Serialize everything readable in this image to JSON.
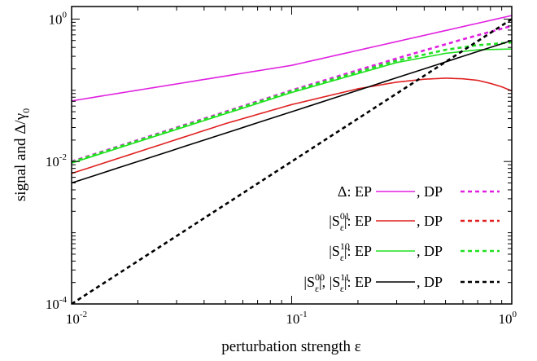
{
  "chart_data": {
    "type": "line",
    "xscale": "log",
    "yscale": "log",
    "xlim": [
      0.01,
      1
    ],
    "ylim": [
      0.0001,
      1.5
    ],
    "xlabel": "perturbation strength ε",
    "ylabel": "signal and Δ/γ",
    "ylabel_sub": "0",
    "x_ticks": [
      {
        "value": 0.01,
        "base": "10",
        "exp": "-2"
      },
      {
        "value": 0.1,
        "base": "10",
        "exp": "-1"
      },
      {
        "value": 1,
        "base": "10",
        "exp": "0"
      }
    ],
    "y_ticks": [
      {
        "value": 0.0001,
        "base": "10",
        "exp": "-4"
      },
      {
        "value": 0.01,
        "base": "10",
        "exp": "-2"
      },
      {
        "value": 1,
        "base": "10",
        "exp": "0"
      }
    ],
    "series": [
      {
        "name": "Δ: EP",
        "color": "#e020e0",
        "dashed": false,
        "points": [
          [
            0.01,
            0.071
          ],
          [
            0.1,
            0.224
          ],
          [
            1.0,
            1.12
          ]
        ]
      },
      {
        "name": "Δ: DP",
        "color": "#e020e0",
        "dashed": true,
        "points": [
          [
            0.01,
            0.01
          ],
          [
            0.1,
            0.1
          ],
          [
            0.3,
            0.28
          ],
          [
            0.6,
            0.52
          ],
          [
            1.0,
            0.8
          ]
        ]
      },
      {
        "name": "|S^01|: EP",
        "color": "#e02020",
        "dashed": false,
        "points": [
          [
            0.01,
            0.0068
          ],
          [
            0.05,
            0.034
          ],
          [
            0.1,
            0.063
          ],
          [
            0.2,
            0.105
          ],
          [
            0.3,
            0.13
          ],
          [
            0.4,
            0.143
          ],
          [
            0.5,
            0.148
          ],
          [
            0.6,
            0.145
          ],
          [
            0.7,
            0.138
          ],
          [
            0.8,
            0.125
          ],
          [
            0.9,
            0.112
          ],
          [
            1.0,
            0.098
          ]
        ]
      },
      {
        "name": "|S^01|: DP",
        "color": "#e02020",
        "dashed": true,
        "points": []
      },
      {
        "name": "|S^10|: EP",
        "color": "#20e020",
        "dashed": false,
        "points": [
          [
            0.01,
            0.0095
          ],
          [
            0.1,
            0.093
          ],
          [
            0.3,
            0.245
          ],
          [
            0.5,
            0.33
          ],
          [
            0.7,
            0.37
          ],
          [
            1.0,
            0.38
          ]
        ]
      },
      {
        "name": "|S^10|: DP",
        "color": "#20e020",
        "dashed": true,
        "points": [
          [
            0.01,
            0.0098
          ],
          [
            0.1,
            0.097
          ],
          [
            0.3,
            0.26
          ],
          [
            0.5,
            0.37
          ],
          [
            0.7,
            0.43
          ],
          [
            1.0,
            0.47
          ]
        ]
      },
      {
        "name": "|S^00|, |S^11|: EP",
        "color": "#000000",
        "dashed": false,
        "points": [
          [
            0.01,
            0.005
          ],
          [
            0.1,
            0.05
          ],
          [
            1.0,
            0.5
          ]
        ]
      },
      {
        "name": "|S^00|, |S^11|: DP",
        "color": "#000000",
        "dashed": true,
        "points": [
          [
            0.01,
            0.0001
          ],
          [
            0.1,
            0.01
          ],
          [
            1.0,
            1.0
          ]
        ]
      }
    ],
    "legend": {
      "position": "bottom-right",
      "dp_label": ", DP",
      "rows": [
        {
          "parts": [
            {
              "t": "Δ: EP"
            }
          ],
          "color": "#e020e0"
        },
        {
          "parts": [
            {
              "t": "|S"
            },
            {
              "sup": "01",
              "sub": "ε"
            },
            {
              "t": "|: EP"
            }
          ],
          "color": "#e02020"
        },
        {
          "parts": [
            {
              "t": "|S"
            },
            {
              "sup": "10",
              "sub": "ε"
            },
            {
              "t": "|: EP"
            }
          ],
          "color": "#20e020"
        },
        {
          "parts": [
            {
              "t": "|S"
            },
            {
              "sup": "00",
              "sub": "ε"
            },
            {
              "t": "|, |S"
            },
            {
              "sup": "11",
              "sub": "ε"
            },
            {
              "t": "|: EP"
            }
          ],
          "color": "#000000"
        }
      ]
    }
  }
}
